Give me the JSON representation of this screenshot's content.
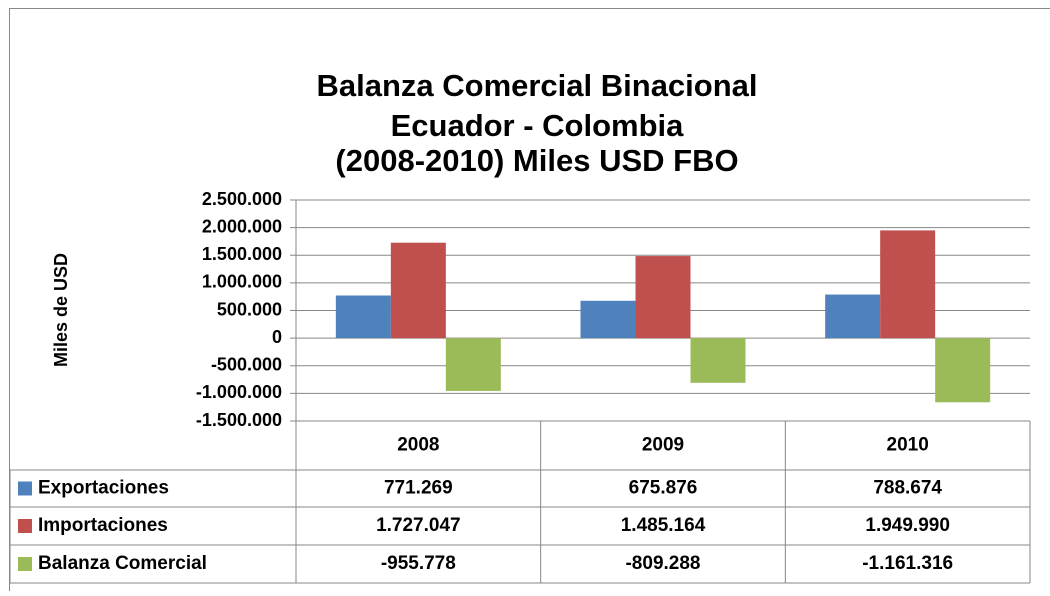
{
  "chart_data": {
    "type": "bar",
    "title": [
      "Balanza Comercial Binacional",
      "Ecuador - Colombia",
      "(2008-2010) Miles USD FBO"
    ],
    "y_label": "Miles de USD",
    "categories": [
      "2008",
      "2009",
      "2010"
    ],
    "series": [
      {
        "name": "Exportaciones",
        "color": "#4f81bd",
        "values": [
          771269,
          675876,
          788674
        ],
        "value_labels": [
          "771.269",
          "675.876",
          "788.674"
        ]
      },
      {
        "name": "Importaciones",
        "color": "#c0504d",
        "values": [
          1727047,
          1485164,
          1949990
        ],
        "value_labels": [
          "1.727.047",
          "1.485.164",
          "1.949.990"
        ]
      },
      {
        "name": "Balanza Comercial",
        "color": "#9bbb59",
        "values": [
          -955778,
          -809288,
          -1161316
        ],
        "value_labels": [
          "-955.778",
          "-809.288",
          "-1.161.316"
        ]
      }
    ],
    "ylim": [
      -1500000,
      2500000
    ],
    "yticks": [
      {
        "value": -1500000,
        "label": "-1.500.000"
      },
      {
        "value": -1000000,
        "label": "-1.000.000"
      },
      {
        "value": -500000,
        "label": "-500.000"
      },
      0,
      {
        "value": 500000,
        "label": "500.000"
      },
      {
        "value": 1000000,
        "label": "1.000.000"
      },
      {
        "value": 1500000,
        "label": "1.500.000"
      },
      {
        "value": 2000000,
        "label": "2.000.000"
      },
      {
        "value": 2500000,
        "label": "2.500.000"
      }
    ],
    "grid": true,
    "data_table": true
  }
}
